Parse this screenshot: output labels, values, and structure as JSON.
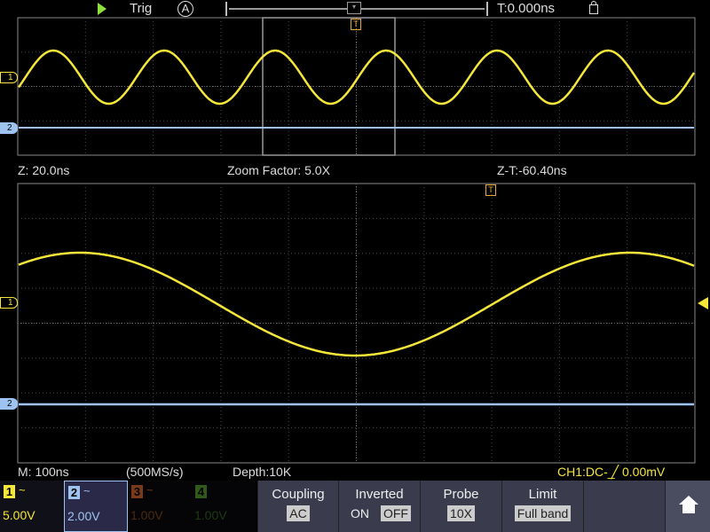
{
  "top_bar": {
    "run_state_icon": "play-icon",
    "trigger_label": "Trig",
    "trigger_mode": "A",
    "trigger_time": "T:0.000ns",
    "lock_icon": "unlock-icon"
  },
  "zoom_info": {
    "zoom_time": "Z: 20.0ns",
    "zoom_factor": "Zoom Factor: 5.0X",
    "zoom_offset": "Z-T:-60.40ns"
  },
  "status": {
    "timebase": "M: 100ns",
    "sample_rate": "(500MS/s)",
    "depth": "Depth:10K",
    "trigger_info": "CH1:DC- ̲╱ 0.00mV"
  },
  "markers": {
    "ch1": "1",
    "ch2": "2",
    "trigger": "T"
  },
  "channels": [
    {
      "num": "1",
      "coupling": "~",
      "volts": "5.00V",
      "color": "#f5e63a",
      "active": true
    },
    {
      "num": "2",
      "coupling": "~",
      "volts": "2.00V",
      "color": "#9fc3f0",
      "active": true
    },
    {
      "num": "3",
      "coupling": "~",
      "volts": "1.00V",
      "color": "#7a3a1a",
      "active": false
    },
    {
      "num": "4",
      "coupling": "~",
      "volts": "1.00V",
      "color": "#2f5a1a",
      "active": false
    }
  ],
  "menu": {
    "coupling": {
      "label": "Coupling",
      "value": "AC"
    },
    "inverted": {
      "label": "Inverted",
      "on": "ON",
      "off": "OFF",
      "selected": "OFF"
    },
    "probe": {
      "label": "Probe",
      "value": "10X"
    },
    "limit": {
      "label": "Limit",
      "value": "Full band"
    },
    "home_icon": "home-icon"
  },
  "colors": {
    "ch1": "#f5e63a",
    "ch2": "#9fc3f0",
    "trigger": "#e8a63a",
    "grid": "#4a4a4a"
  }
}
